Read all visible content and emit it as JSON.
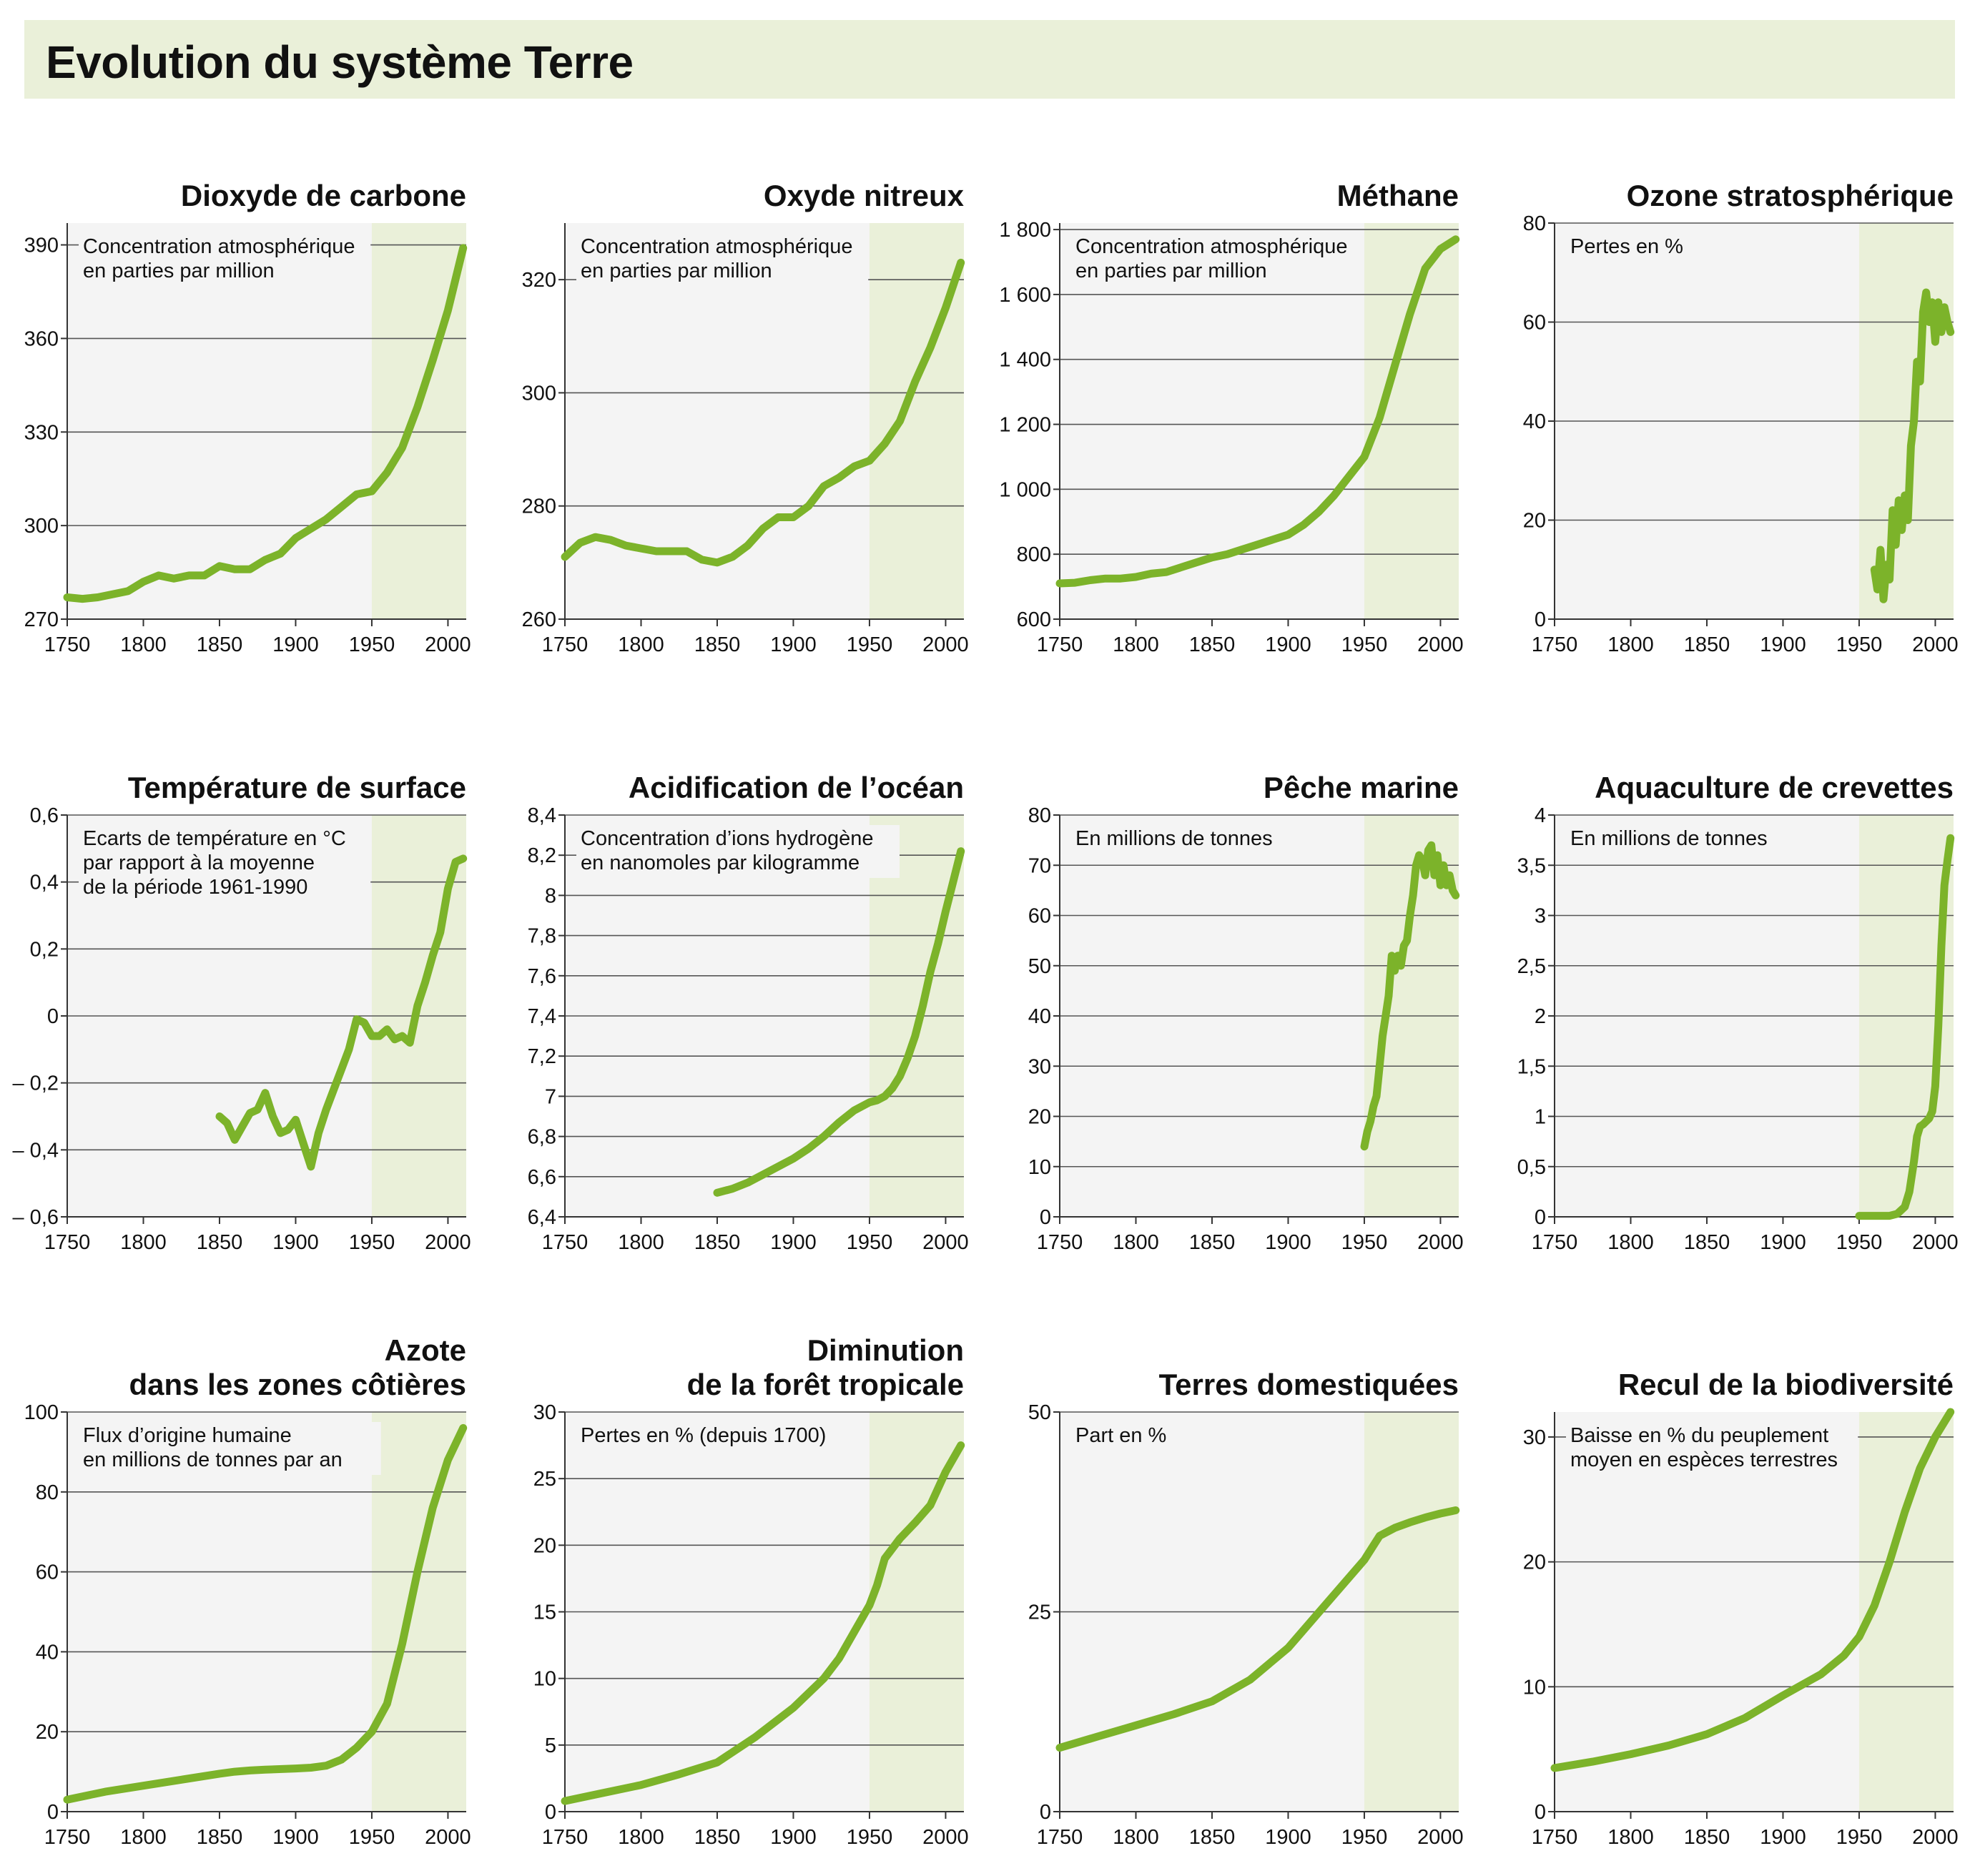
{
  "page": {
    "title": "Evolution du système Terre"
  },
  "chart_data": [
    {
      "type": "line",
      "title": [
        "Dioxyde de carbone"
      ],
      "note": [
        "Concentration atmosphérique",
        "en parties par million"
      ],
      "ylim": [
        270,
        397
      ],
      "yticks": [
        270,
        300,
        330,
        360,
        390
      ],
      "ytick_labels": [
        "270",
        "300",
        "330",
        "360",
        "390"
      ],
      "xlim": [
        1750,
        2012
      ],
      "xticks": [
        1750,
        1800,
        1850,
        1900,
        1950,
        2000
      ],
      "xtick_labels": [
        "1750",
        "1800",
        "1850",
        "1900",
        "1950",
        "2000"
      ],
      "highlight_from": 1950,
      "x": [
        1750,
        1760,
        1770,
        1780,
        1790,
        1800,
        1810,
        1820,
        1830,
        1840,
        1850,
        1860,
        1870,
        1880,
        1890,
        1900,
        1910,
        1920,
        1930,
        1940,
        1950,
        1960,
        1970,
        1980,
        1990,
        2000,
        2010
      ],
      "y": [
        277,
        276.5,
        277,
        278,
        279,
        282,
        284,
        283,
        284,
        284,
        287,
        286,
        286,
        289,
        291,
        296,
        299,
        302,
        306,
        310,
        311,
        317,
        325,
        338,
        353,
        369,
        389
      ]
    },
    {
      "type": "line",
      "title": [
        "Oxyde nitreux"
      ],
      "note": [
        "Concentration atmosphérique",
        "en parties par million"
      ],
      "ylim": [
        260,
        330
      ],
      "yticks": [
        260,
        280,
        300,
        320
      ],
      "ytick_labels": [
        "260",
        "280",
        "300",
        "320"
      ],
      "xlim": [
        1750,
        2012
      ],
      "xticks": [
        1750,
        1800,
        1850,
        1900,
        1950,
        2000
      ],
      "xtick_labels": [
        "1750",
        "1800",
        "1850",
        "1900",
        "1950",
        "2000"
      ],
      "highlight_from": 1950,
      "x": [
        1750,
        1760,
        1770,
        1780,
        1790,
        1800,
        1810,
        1820,
        1830,
        1840,
        1850,
        1860,
        1870,
        1880,
        1890,
        1900,
        1910,
        1920,
        1930,
        1940,
        1950,
        1960,
        1970,
        1980,
        1990,
        2000,
        2010
      ],
      "y": [
        271,
        273.5,
        274.5,
        274,
        273,
        272.5,
        272,
        272,
        272,
        270.5,
        270,
        271,
        273,
        276,
        278,
        278,
        280,
        283.5,
        285,
        287,
        288,
        291,
        295,
        302,
        308,
        315,
        323
      ]
    },
    {
      "type": "line",
      "title": [
        "Méthane"
      ],
      "note": [
        "Concentration atmosphérique",
        "en parties par million"
      ],
      "ylim": [
        600,
        1820
      ],
      "yticks": [
        600,
        800,
        1000,
        1200,
        1400,
        1600,
        1800
      ],
      "ytick_labels": [
        "600",
        "800",
        "1 000",
        "1 200",
        "1 400",
        "1 600",
        "1 800"
      ],
      "xlim": [
        1750,
        2012
      ],
      "xticks": [
        1750,
        1800,
        1850,
        1900,
        1950,
        2000
      ],
      "xtick_labels": [
        "1750",
        "1800",
        "1850",
        "1900",
        "1950",
        "2000"
      ],
      "highlight_from": 1950,
      "x": [
        1750,
        1760,
        1770,
        1780,
        1790,
        1800,
        1810,
        1820,
        1830,
        1840,
        1850,
        1860,
        1870,
        1880,
        1890,
        1900,
        1910,
        1920,
        1930,
        1940,
        1950,
        1960,
        1970,
        1980,
        1990,
        2000,
        2010
      ],
      "y": [
        710,
        712,
        720,
        725,
        725,
        730,
        740,
        745,
        760,
        775,
        790,
        800,
        815,
        830,
        845,
        860,
        890,
        930,
        980,
        1040,
        1100,
        1220,
        1380,
        1540,
        1680,
        1740,
        1770
      ]
    },
    {
      "type": "line",
      "title": [
        "Ozone stratosphérique"
      ],
      "note": [
        "Pertes en %"
      ],
      "ylim": [
        0,
        80
      ],
      "yticks": [
        0,
        20,
        40,
        60,
        80
      ],
      "ytick_labels": [
        "0",
        "20",
        "40",
        "60",
        "80"
      ],
      "xlim": [
        1750,
        2012
      ],
      "xticks": [
        1750,
        1800,
        1850,
        1900,
        1950,
        2000
      ],
      "xtick_labels": [
        "1750",
        "1800",
        "1850",
        "1900",
        "1950",
        "2000"
      ],
      "highlight_from": 1950,
      "x": [
        1960,
        1962,
        1964,
        1966,
        1968,
        1970,
        1972,
        1974,
        1976,
        1978,
        1980,
        1982,
        1984,
        1986,
        1988,
        1990,
        1992,
        1994,
        1996,
        1998,
        2000,
        2002,
        2004,
        2006,
        2008,
        2010
      ],
      "y": [
        10,
        6,
        14,
        4,
        11,
        8,
        22,
        15,
        24,
        18,
        25,
        20,
        35,
        40,
        52,
        48,
        62,
        66,
        60,
        64,
        56,
        64,
        58,
        63,
        60,
        58
      ]
    },
    {
      "type": "line",
      "title": [
        "Température de surface"
      ],
      "note": [
        "Ecarts de température en °C",
        "par rapport à la moyenne",
        "de la période 1961-1990"
      ],
      "ylim": [
        -0.6,
        0.6
      ],
      "yticks": [
        -0.6,
        -0.4,
        -0.2,
        0,
        0.2,
        0.4,
        0.6
      ],
      "ytick_labels": [
        "– 0,6",
        "– 0,4",
        "– 0,2",
        "0",
        "0,2",
        "0,4",
        "0,6"
      ],
      "xlim": [
        1750,
        2012
      ],
      "xticks": [
        1750,
        1800,
        1850,
        1900,
        1950,
        2000
      ],
      "xtick_labels": [
        "1750",
        "1800",
        "1850",
        "1900",
        "1950",
        "2000"
      ],
      "highlight_from": 1950,
      "x": [
        1850,
        1855,
        1860,
        1865,
        1870,
        1875,
        1880,
        1885,
        1890,
        1895,
        1900,
        1905,
        1910,
        1915,
        1920,
        1925,
        1930,
        1935,
        1940,
        1945,
        1950,
        1955,
        1960,
        1965,
        1970,
        1975,
        1980,
        1985,
        1990,
        1995,
        2000,
        2005,
        2010
      ],
      "y": [
        -0.3,
        -0.32,
        -0.37,
        -0.33,
        -0.29,
        -0.28,
        -0.23,
        -0.3,
        -0.35,
        -0.34,
        -0.31,
        -0.38,
        -0.45,
        -0.35,
        -0.28,
        -0.22,
        -0.16,
        -0.1,
        -0.01,
        -0.02,
        -0.06,
        -0.06,
        -0.04,
        -0.07,
        -0.06,
        -0.08,
        0.03,
        0.1,
        0.18,
        0.25,
        0.38,
        0.46,
        0.47
      ]
    },
    {
      "type": "line",
      "title": [
        "Acidification de l’océan"
      ],
      "note": [
        "Concentration d’ions hydrogène",
        "en nanomoles par kilogramme"
      ],
      "ylim": [
        6.4,
        8.4
      ],
      "yticks": [
        6.4,
        6.6,
        6.8,
        7,
        7.2,
        7.4,
        7.6,
        7.8,
        8,
        8.2,
        8.4
      ],
      "ytick_labels": [
        "6,4",
        "6,6",
        "6,8",
        "7",
        "7,2",
        "7,4",
        "7,6",
        "7,8",
        "8",
        "8,2",
        "8,4"
      ],
      "xlim": [
        1750,
        2012
      ],
      "xticks": [
        1750,
        1800,
        1850,
        1900,
        1950,
        2000
      ],
      "xtick_labels": [
        "1750",
        "1800",
        "1850",
        "1900",
        "1950",
        "2000"
      ],
      "highlight_from": 1950,
      "x": [
        1850,
        1860,
        1870,
        1880,
        1890,
        1900,
        1910,
        1920,
        1930,
        1940,
        1950,
        1955,
        1960,
        1965,
        1970,
        1975,
        1980,
        1985,
        1990,
        1995,
        2000,
        2005,
        2010
      ],
      "y": [
        6.52,
        6.54,
        6.57,
        6.61,
        6.65,
        6.69,
        6.74,
        6.8,
        6.87,
        6.93,
        6.97,
        6.98,
        7.0,
        7.04,
        7.1,
        7.19,
        7.3,
        7.45,
        7.62,
        7.76,
        7.92,
        8.07,
        8.22
      ]
    },
    {
      "type": "line",
      "title": [
        "Pêche marine"
      ],
      "note": [
        "En millions de tonnes"
      ],
      "ylim": [
        0,
        80
      ],
      "yticks": [
        0,
        10,
        20,
        30,
        40,
        50,
        60,
        70,
        80
      ],
      "ytick_labels": [
        "0",
        "10",
        "20",
        "30",
        "40",
        "50",
        "60",
        "70",
        "80"
      ],
      "xlim": [
        1750,
        2012
      ],
      "xticks": [
        1750,
        1800,
        1850,
        1900,
        1950,
        2000
      ],
      "xtick_labels": [
        "1750",
        "1800",
        "1850",
        "1900",
        "1950",
        "2000"
      ],
      "highlight_from": 1950,
      "x": [
        1950,
        1952,
        1954,
        1956,
        1958,
        1960,
        1962,
        1964,
        1966,
        1968,
        1970,
        1972,
        1974,
        1976,
        1978,
        1980,
        1982,
        1984,
        1986,
        1988,
        1990,
        1992,
        1994,
        1996,
        1998,
        2000,
        2002,
        2004,
        2006,
        2008,
        2010
      ],
      "y": [
        14,
        17,
        19,
        22,
        24,
        30,
        36,
        40,
        44,
        52,
        49,
        52,
        50,
        54,
        55,
        60,
        64,
        70,
        72,
        71,
        68,
        73,
        74,
        68,
        72,
        66,
        70,
        66,
        68,
        65,
        64
      ]
    },
    {
      "type": "line",
      "title": [
        "Aquaculture de crevettes"
      ],
      "note": [
        "En millions de tonnes"
      ],
      "ylim": [
        0,
        4
      ],
      "yticks": [
        0,
        0.5,
        1,
        1.5,
        2,
        2.5,
        3,
        3.5,
        4
      ],
      "ytick_labels": [
        "0",
        "0,5",
        "1",
        "1,5",
        "2",
        "2,5",
        "3",
        "3,5",
        "4"
      ],
      "xlim": [
        1750,
        2012
      ],
      "xticks": [
        1750,
        1800,
        1850,
        1900,
        1950,
        2000
      ],
      "xtick_labels": [
        "1750",
        "1800",
        "1850",
        "1900",
        "1950",
        "2000"
      ],
      "highlight_from": 1950,
      "x": [
        1950,
        1960,
        1970,
        1975,
        1980,
        1983,
        1986,
        1988,
        1990,
        1992,
        1994,
        1996,
        1998,
        2000,
        2002,
        2004,
        2006,
        2008,
        2010
      ],
      "y": [
        0.01,
        0.01,
        0.01,
        0.03,
        0.1,
        0.25,
        0.55,
        0.8,
        0.9,
        0.92,
        0.95,
        0.98,
        1.05,
        1.3,
        1.9,
        2.7,
        3.3,
        3.55,
        3.77
      ]
    },
    {
      "type": "line",
      "title": [
        "Azote",
        "dans les zones côtières"
      ],
      "note": [
        "Flux d’origine humaine",
        "en millions de tonnes par an"
      ],
      "ylim": [
        0,
        100
      ],
      "yticks": [
        0,
        20,
        40,
        60,
        80,
        100
      ],
      "ytick_labels": [
        "0",
        "20",
        "40",
        "60",
        "80",
        "100"
      ],
      "xlim": [
        1750,
        2012
      ],
      "xticks": [
        1750,
        1800,
        1850,
        1900,
        1950,
        2000
      ],
      "xtick_labels": [
        "1750",
        "1800",
        "1850",
        "1900",
        "1950",
        "2000"
      ],
      "highlight_from": 1950,
      "x": [
        1750,
        1775,
        1800,
        1825,
        1850,
        1860,
        1870,
        1880,
        1900,
        1910,
        1920,
        1930,
        1940,
        1950,
        1960,
        1970,
        1980,
        1990,
        2000,
        2010
      ],
      "y": [
        3,
        5,
        6.5,
        8,
        9.5,
        10,
        10.3,
        10.5,
        10.8,
        11,
        11.5,
        13,
        16,
        20,
        27,
        42,
        60,
        76,
        88,
        96
      ]
    },
    {
      "type": "line",
      "title": [
        "Diminution",
        "de la forêt tropicale"
      ],
      "note": [
        "Pertes en % (depuis 1700)"
      ],
      "ylim": [
        0,
        30
      ],
      "yticks": [
        0,
        5,
        10,
        15,
        20,
        25,
        30
      ],
      "ytick_labels": [
        "0",
        "5",
        "10",
        "15",
        "20",
        "25",
        "30"
      ],
      "xlim": [
        1750,
        2012
      ],
      "xticks": [
        1750,
        1800,
        1850,
        1900,
        1950,
        2000
      ],
      "xtick_labels": [
        "1750",
        "1800",
        "1850",
        "1900",
        "1950",
        "2000"
      ],
      "highlight_from": 1950,
      "x": [
        1750,
        1775,
        1800,
        1825,
        1850,
        1875,
        1900,
        1920,
        1930,
        1940,
        1950,
        1955,
        1960,
        1970,
        1980,
        1990,
        2000,
        2010
      ],
      "y": [
        0.8,
        1.4,
        2,
        2.8,
        3.7,
        5.6,
        7.8,
        10,
        11.5,
        13.5,
        15.5,
        17,
        19,
        20.5,
        21.7,
        23,
        25.5,
        27.5
      ]
    },
    {
      "type": "line",
      "title": [
        "Terres domestiquées"
      ],
      "note": [
        "Part en %"
      ],
      "ylim": [
        0,
        50
      ],
      "yticks": [
        0,
        25,
        50
      ],
      "ytick_labels": [
        "0",
        "25",
        "50"
      ],
      "xlim": [
        1750,
        2012
      ],
      "xticks": [
        1750,
        1800,
        1850,
        1900,
        1950,
        2000
      ],
      "xtick_labels": [
        "1750",
        "1800",
        "1850",
        "1900",
        "1950",
        "2000"
      ],
      "highlight_from": 1950,
      "x": [
        1750,
        1775,
        1800,
        1825,
        1850,
        1875,
        1900,
        1925,
        1950,
        1960,
        1970,
        1980,
        1990,
        2000,
        2010
      ],
      "y": [
        8,
        9.4,
        10.8,
        12.2,
        13.8,
        16.5,
        20.5,
        26,
        31.5,
        34.5,
        35.5,
        36.2,
        36.8,
        37.3,
        37.7
      ]
    },
    {
      "type": "line",
      "title": [
        "Recul de la biodiversité"
      ],
      "note": [
        "Baisse en % du peuplement",
        "moyen en espèces terrestres"
      ],
      "ylim": [
        0,
        32
      ],
      "yticks": [
        0,
        10,
        20,
        30
      ],
      "ytick_labels": [
        "0",
        "10",
        "20",
        "30"
      ],
      "xlim": [
        1750,
        2012
      ],
      "xticks": [
        1750,
        1800,
        1850,
        1900,
        1950,
        2000
      ],
      "xtick_labels": [
        "1750",
        "1800",
        "1850",
        "1900",
        "1950",
        "2000"
      ],
      "highlight_from": 1950,
      "x": [
        1750,
        1775,
        1800,
        1825,
        1850,
        1875,
        1900,
        1925,
        1940,
        1950,
        1960,
        1970,
        1980,
        1990,
        2000,
        2010
      ],
      "y": [
        3.5,
        4,
        4.6,
        5.3,
        6.2,
        7.5,
        9.3,
        11,
        12.5,
        14,
        16.5,
        20,
        24,
        27.5,
        30,
        32
      ]
    }
  ]
}
